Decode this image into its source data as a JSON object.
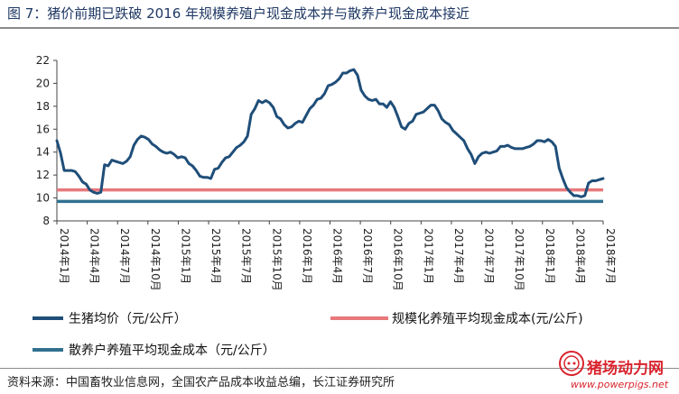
{
  "header": {
    "title": "图 7：猪价前期已跌破 2016 年规模养殖户现金成本并与散养户现金成本接近"
  },
  "source": {
    "text": "资料来源：中国畜牧业信息网，全国农产品成本收益总编，长江证券研究所"
  },
  "watermark": {
    "name": "猪场动力网",
    "url": "www.powerpigs.net"
  },
  "colors": {
    "price": "#1f4e79",
    "scale_cost": "#e8787a",
    "backyard_cost": "#31708f",
    "title": "#1f3864",
    "watermark": "#d9232d"
  },
  "chart_data": {
    "type": "line",
    "title": "",
    "xlabel": "",
    "ylabel": "",
    "ylim": [
      8,
      22
    ],
    "yticks": [
      8,
      10,
      12,
      14,
      16,
      18,
      20,
      22
    ],
    "grid": false,
    "legend_position": "bottom",
    "x_tick_labels": [
      "2014年1月",
      "2014年4月",
      "2014年7月",
      "2014年10月",
      "2015年1月",
      "2015年4月",
      "2015年7月",
      "2015年10月",
      "2016年1月",
      "2016年4月",
      "2016年7月",
      "2016年10月",
      "2017年1月",
      "2017年4月",
      "2017年7月",
      "2017年10月",
      "2018年1月",
      "2018年4月",
      "2018年7月"
    ],
    "series": [
      {
        "name": "生猪均价（元/公斤）",
        "kind": "line",
        "start": "2014年1月",
        "interval": "周",
        "values": [
          15.0,
          13.9,
          12.4,
          12.4,
          12.4,
          12.3,
          11.9,
          11.4,
          11.2,
          10.7,
          10.5,
          10.4,
          10.5,
          12.9,
          12.8,
          13.3,
          13.2,
          13.1,
          13.0,
          13.2,
          13.6,
          14.6,
          15.1,
          15.4,
          15.3,
          15.1,
          14.7,
          14.5,
          14.2,
          14.0,
          13.9,
          14.0,
          13.8,
          13.5,
          13.6,
          13.5,
          13.0,
          12.8,
          12.4,
          11.9,
          11.8,
          11.8,
          11.7,
          12.5,
          12.6,
          13.1,
          13.5,
          13.6,
          14.0,
          14.4,
          14.6,
          14.9,
          15.4,
          17.3,
          17.8,
          18.5,
          18.3,
          18.5,
          18.3,
          17.9,
          17.1,
          16.9,
          16.4,
          16.1,
          16.2,
          16.5,
          16.7,
          16.6,
          17.2,
          17.8,
          18.1,
          18.6,
          18.7,
          19.1,
          19.8,
          19.9,
          20.1,
          20.4,
          20.9,
          20.9,
          21.1,
          21.2,
          20.7,
          19.4,
          18.9,
          18.6,
          18.5,
          18.6,
          18.2,
          18.2,
          17.9,
          18.4,
          17.9,
          17.1,
          16.2,
          16.0,
          16.5,
          16.7,
          17.3,
          17.4,
          17.5,
          17.8,
          18.1,
          18.1,
          17.6,
          16.9,
          16.6,
          16.4,
          15.9,
          15.6,
          15.3,
          15.0,
          14.3,
          13.8,
          13.0,
          13.6,
          13.9,
          14.0,
          13.9,
          14.0,
          14.1,
          14.5,
          14.5,
          14.6,
          14.4,
          14.3,
          14.3,
          14.3,
          14.4,
          14.5,
          14.7,
          15.0,
          15.0,
          14.9,
          15.1,
          14.9,
          14.5,
          12.6,
          11.7,
          10.9,
          10.5,
          10.2,
          10.2,
          10.1,
          10.2,
          11.3,
          11.5,
          11.5,
          11.6,
          11.7
        ]
      },
      {
        "name": "规模化养殖平均现金成本(元/公斤)",
        "kind": "constant",
        "value": 10.7
      },
      {
        "name": "散养户养殖平均现金成本（元/公斤）",
        "kind": "constant",
        "value": 9.7
      }
    ]
  }
}
